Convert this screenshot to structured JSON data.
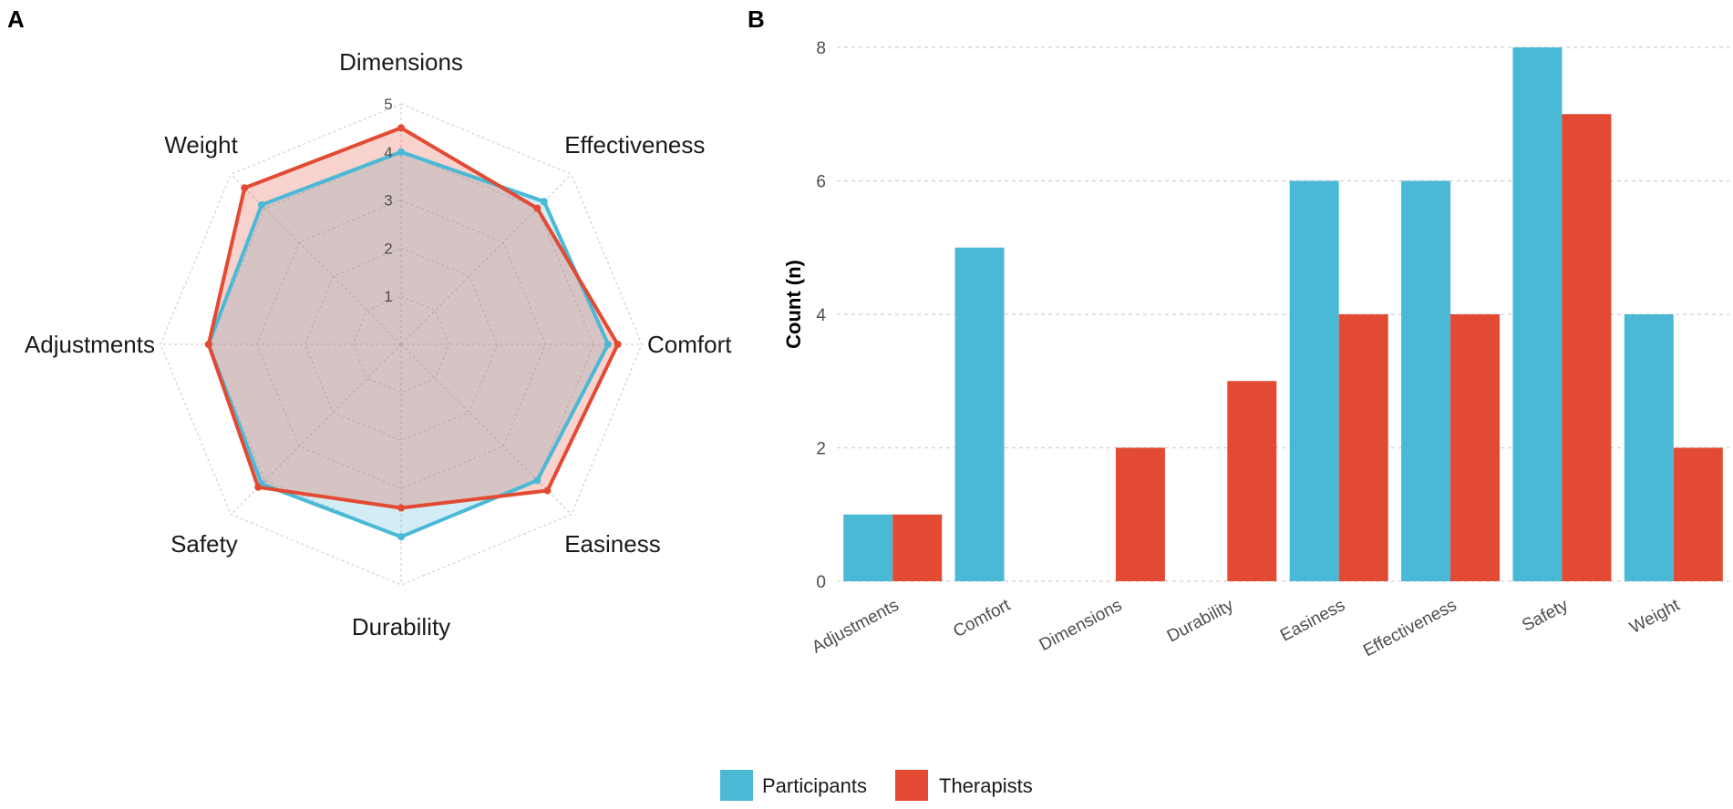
{
  "panels": {
    "a": "A",
    "b": "B"
  },
  "legend": {
    "participants": "Participants",
    "therapists": "Therapists"
  },
  "colors": {
    "participants": "#4ab9d6",
    "therapists": "#e24a33",
    "grid": "#d0d0d0"
  },
  "chart_data": [
    {
      "type": "radar",
      "panel": "A",
      "axes": [
        "Dimensions",
        "Effectiveness",
        "Comfort",
        "Easiness",
        "Durability",
        "Safety",
        "Adjustments",
        "Weight"
      ],
      "rlim": [
        0,
        5
      ],
      "ticks": [
        "1",
        "2",
        "3",
        "4",
        "5"
      ],
      "series": [
        {
          "name": "Participants",
          "values": [
            4.0,
            4.2,
            4.3,
            4.0,
            4.0,
            4.1,
            4.0,
            4.1
          ]
        },
        {
          "name": "Therapists",
          "values": [
            4.5,
            4.0,
            4.5,
            4.3,
            3.4,
            4.2,
            4.0,
            4.6
          ]
        }
      ]
    },
    {
      "type": "bar",
      "panel": "B",
      "categories": [
        "Adjustments",
        "Comfort",
        "Dimensions",
        "Durability",
        "Easiness",
        "Effectiveness",
        "Safety",
        "Weight"
      ],
      "series": [
        {
          "name": "Participants",
          "values": [
            1,
            5,
            0,
            0,
            6,
            6,
            8,
            4
          ]
        },
        {
          "name": "Therapists",
          "values": [
            1,
            0,
            2,
            3,
            4,
            4,
            7,
            2
          ]
        }
      ],
      "ylabel": "Count (n)",
      "xlabel": "",
      "ylim": [
        0,
        8.3
      ],
      "yticks": [
        "0",
        "2",
        "4",
        "6",
        "8"
      ]
    }
  ]
}
